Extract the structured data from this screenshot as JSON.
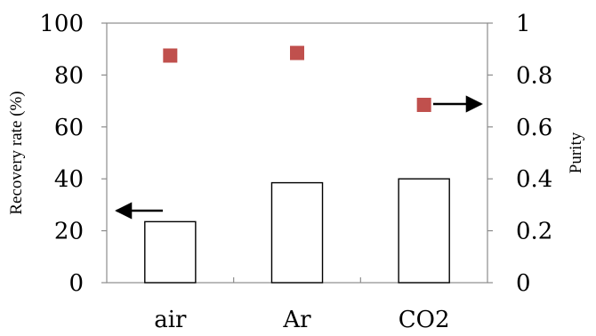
{
  "chart_data": {
    "type": "bar",
    "categories": [
      "air",
      "Ar",
      "CO2"
    ],
    "series": [
      {
        "name": "Recovery rate (%)",
        "type": "bar",
        "axis": "left",
        "values": [
          23.5,
          38.5,
          40
        ]
      },
      {
        "name": "Purity",
        "type": "scatter",
        "axis": "right",
        "values": [
          0.875,
          0.885,
          0.685
        ],
        "color": "#c0504d"
      }
    ],
    "y_left": {
      "label": "Recovery rate (%)",
      "lim": [
        0,
        100
      ],
      "ticks": [
        "0",
        "20",
        "40",
        "60",
        "80",
        "100"
      ]
    },
    "y_right": {
      "label": "Purity",
      "lim": [
        0,
        1
      ],
      "ticks": [
        "0",
        "0.2",
        "0.4",
        "0.6",
        "0.8",
        "1"
      ]
    },
    "annotations": [
      {
        "type": "arrow",
        "direction": "left",
        "points_to": "left-axis",
        "near_series": "Recovery rate (%)"
      },
      {
        "type": "arrow",
        "direction": "right",
        "points_to": "right-axis",
        "near_series": "Purity"
      }
    ],
    "grid": false,
    "legend": "none"
  }
}
